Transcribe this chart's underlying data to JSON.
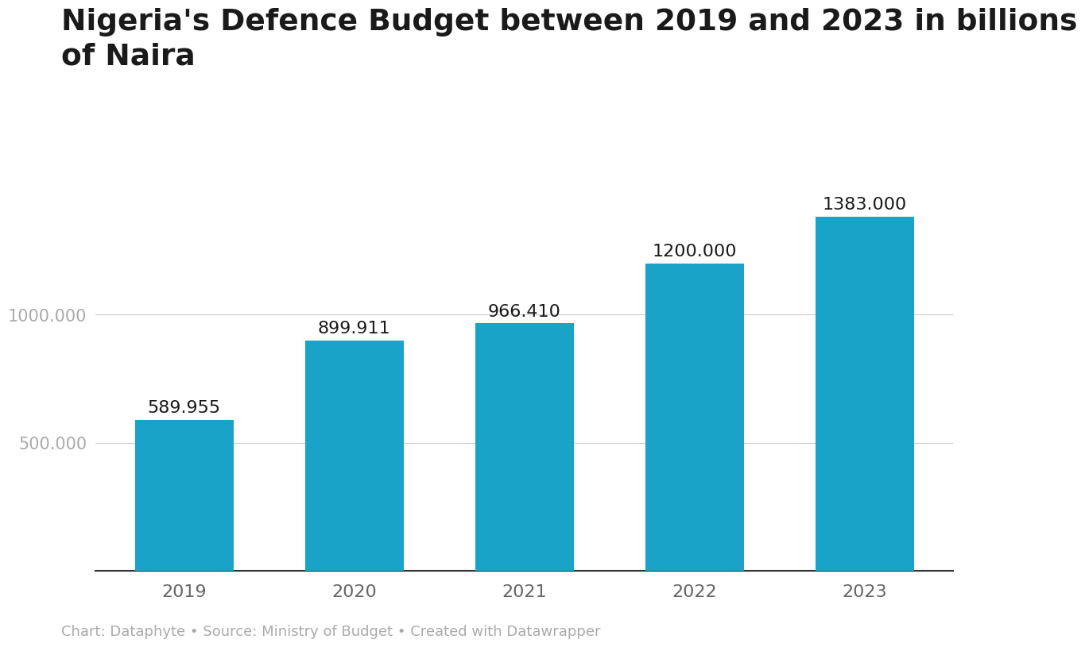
{
  "title": "Nigeria's Defence Budget between 2019 and 2023 in billions\nof Naira",
  "categories": [
    "2019",
    "2020",
    "2021",
    "2022",
    "2023"
  ],
  "values": [
    589.955,
    899.911,
    966.41,
    1200.0,
    1383.0
  ],
  "bar_color": "#1aa3c8",
  "label_color": "#1a1a1a",
  "ytick_color": "#aaaaaa",
  "xtick_color": "#666666",
  "grid_color": "#cccccc",
  "background_color": "#ffffff",
  "footnote": "Chart: Dataphyte • Source: Ministry of Budget • Created with Datawrapper",
  "ytick_positions": [
    500,
    1000
  ],
  "ytick_labels": [
    "500.000",
    "1000.000"
  ],
  "ylim": [
    0,
    1560
  ],
  "title_fontsize": 27,
  "bar_label_fontsize": 16,
  "xtick_fontsize": 16,
  "ytick_fontsize": 15,
  "footnote_fontsize": 13
}
